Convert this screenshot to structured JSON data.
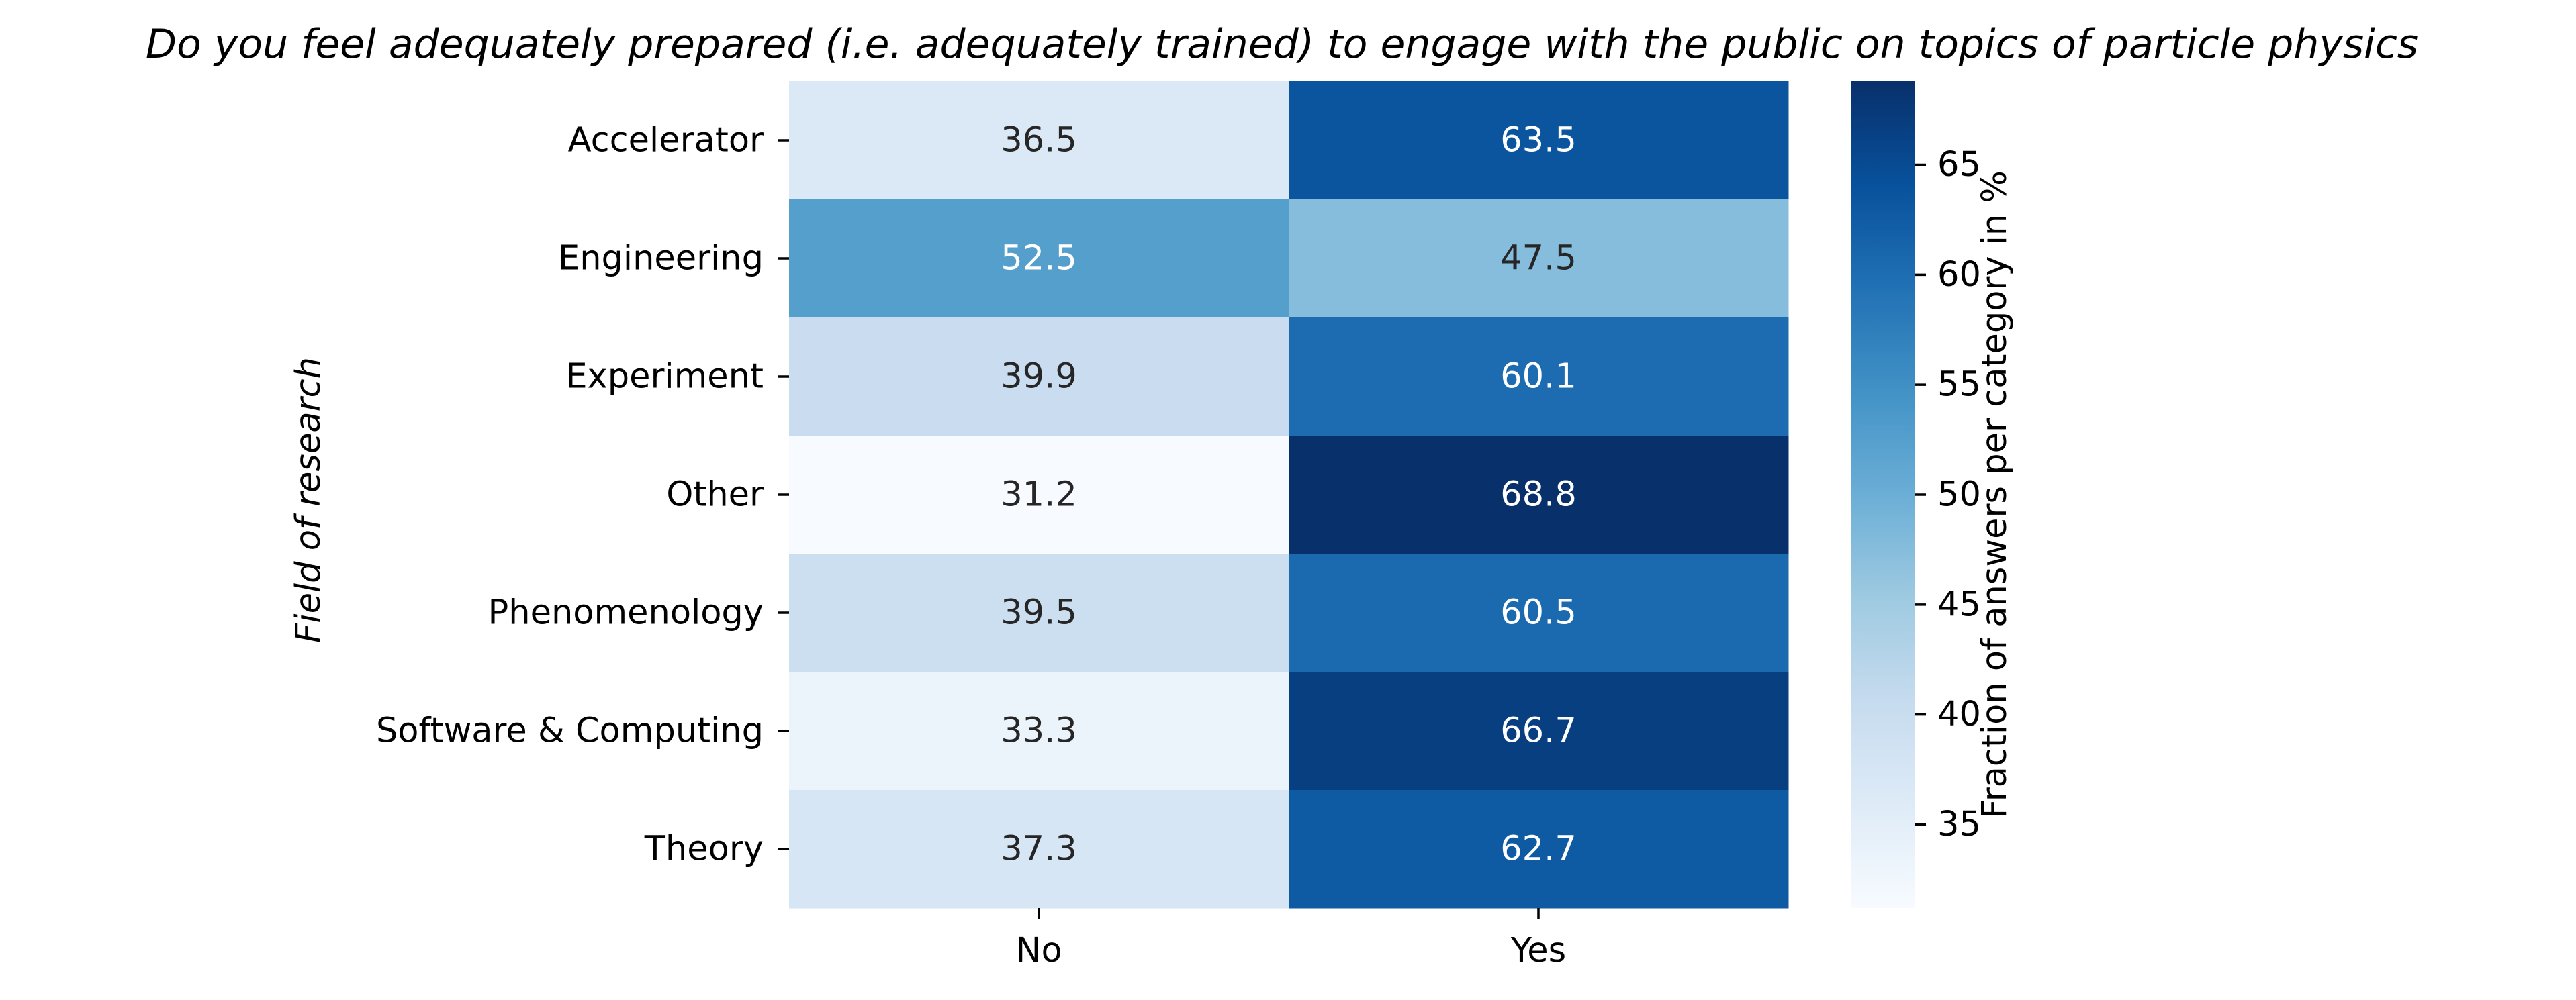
{
  "chart_data": {
    "type": "heatmap",
    "title": "Do you feel adequately prepared (i.e. adequately trained) to engage with the public on topics of particle physics",
    "xlabel": "",
    "ylabel": "Field of research",
    "x_categories": [
      "No",
      "Yes"
    ],
    "y_categories": [
      "Accelerator",
      "Engineering",
      "Experiment",
      "Other",
      "Phenomenology",
      "Software & Computing",
      "Theory"
    ],
    "values": [
      [
        36.5,
        63.5
      ],
      [
        52.5,
        47.5
      ],
      [
        39.9,
        60.1
      ],
      [
        31.2,
        68.8
      ],
      [
        39.5,
        60.5
      ],
      [
        33.3,
        66.7
      ],
      [
        37.3,
        62.7
      ]
    ],
    "value_labels": [
      [
        "36.5",
        "63.5"
      ],
      [
        "52.5",
        "47.5"
      ],
      [
        "39.9",
        "60.1"
      ],
      [
        "31.2",
        "68.8"
      ],
      [
        "39.5",
        "60.5"
      ],
      [
        "33.3",
        "66.7"
      ],
      [
        "37.3",
        "62.7"
      ]
    ],
    "colormap": "Blues",
    "colorbar": {
      "label": "Fraction of answers per category in %",
      "range": [
        31.2,
        68.8
      ],
      "ticks": [
        35,
        40,
        45,
        50,
        55,
        60,
        65
      ],
      "tick_labels": [
        "35",
        "40",
        "45",
        "50",
        "55",
        "60",
        "65"
      ]
    },
    "colors": {
      "text_dark": "#262626",
      "text_light": "#ffffff",
      "blues_stops": [
        "#f7fbff",
        "#deebf7",
        "#c6dbef",
        "#9ecae1",
        "#6baed6",
        "#4292c6",
        "#2171b5",
        "#08519c",
        "#08306b"
      ]
    }
  }
}
